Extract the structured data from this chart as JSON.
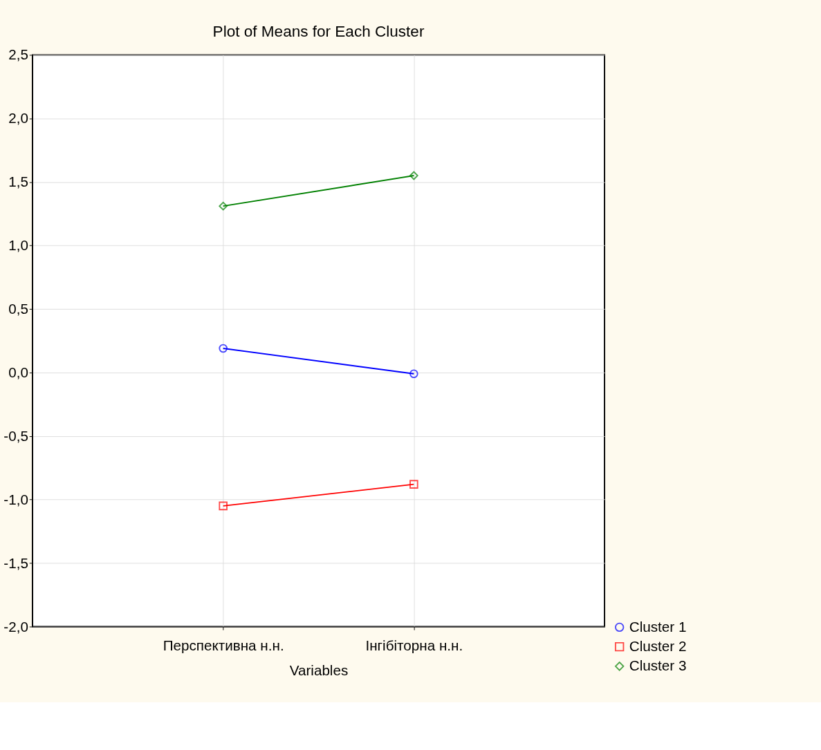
{
  "chart_data": {
    "type": "line",
    "title": "Plot of Means for Each Cluster",
    "xlabel": "Variables",
    "categories": [
      "Перспективна н.н.",
      "Інгібіторна н.н."
    ],
    "series": [
      {
        "name": "Cluster  1",
        "color": "#0000ff",
        "marker": "circle",
        "values": [
          0.19,
          -0.01
        ]
      },
      {
        "name": "Cluster  2",
        "color": "#ff0000",
        "marker": "square",
        "values": [
          -1.05,
          -0.88
        ]
      },
      {
        "name": "Cluster  3",
        "color": "#008000",
        "marker": "diamond",
        "values": [
          1.31,
          1.55
        ]
      }
    ],
    "ylim": [
      -2.0,
      2.5
    ],
    "yticks": [
      {
        "value": -2.0,
        "label": "-2,0"
      },
      {
        "value": -1.5,
        "label": "-1,5"
      },
      {
        "value": -1.0,
        "label": "-1,0"
      },
      {
        "value": -0.5,
        "label": "-0,5"
      },
      {
        "value": 0.0,
        "label": "0,0"
      },
      {
        "value": 0.5,
        "label": "0,5"
      },
      {
        "value": 1.0,
        "label": "1,0"
      },
      {
        "value": 1.5,
        "label": "1,5"
      },
      {
        "value": 2.0,
        "label": "2,0"
      },
      {
        "value": 2.5,
        "label": "2,5"
      }
    ],
    "grid": true,
    "legend": "bottom right",
    "line_style": "solid"
  }
}
